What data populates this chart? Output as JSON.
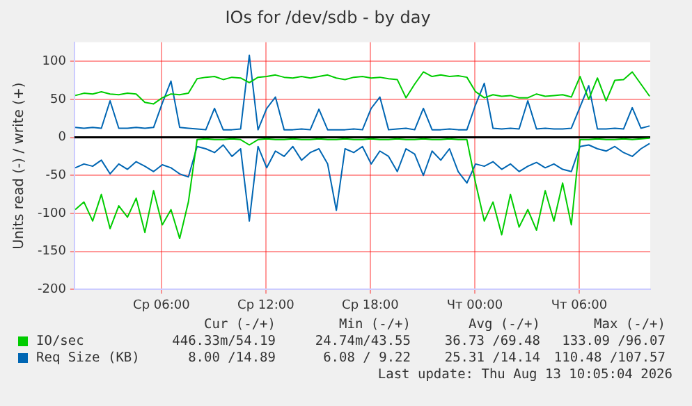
{
  "chart_data": {
    "type": "line",
    "title": "IOs for /dev/sdb - by day",
    "ylabel": "Units read (-) / write (+)",
    "x": [
      "2026-08-12T01:03",
      "2026-08-12T01:33",
      "2026-08-12T02:03",
      "2026-08-12T02:33",
      "2026-08-12T03:03",
      "2026-08-12T03:33",
      "2026-08-12T04:03",
      "2026-08-12T04:33",
      "2026-08-12T05:03",
      "2026-08-12T05:33",
      "2026-08-12T06:03",
      "2026-08-12T06:33",
      "2026-08-12T07:03",
      "2026-08-12T07:33",
      "2026-08-12T08:03",
      "2026-08-12T08:33",
      "2026-08-12T09:03",
      "2026-08-12T09:33",
      "2026-08-12T10:03",
      "2026-08-12T10:33",
      "2026-08-12T11:03",
      "2026-08-12T11:33",
      "2026-08-12T12:03",
      "2026-08-12T12:33",
      "2026-08-12T13:03",
      "2026-08-12T13:33",
      "2026-08-12T14:03",
      "2026-08-12T14:33",
      "2026-08-12T15:03",
      "2026-08-12T15:33",
      "2026-08-12T16:03",
      "2026-08-12T16:33",
      "2026-08-12T17:03",
      "2026-08-12T17:33",
      "2026-08-12T18:03",
      "2026-08-12T18:33",
      "2026-08-12T19:03",
      "2026-08-12T19:33",
      "2026-08-12T20:03",
      "2026-08-12T20:33",
      "2026-08-12T21:03",
      "2026-08-12T21:33",
      "2026-08-12T22:03",
      "2026-08-12T22:33",
      "2026-08-12T23:03",
      "2026-08-12T23:33",
      "2026-08-13T00:03",
      "2026-08-13T00:33",
      "2026-08-13T01:03",
      "2026-08-13T01:33",
      "2026-08-13T02:03",
      "2026-08-13T02:33",
      "2026-08-13T03:03",
      "2026-08-13T03:33",
      "2026-08-13T04:03",
      "2026-08-13T04:33",
      "2026-08-13T05:03",
      "2026-08-13T05:33",
      "2026-08-13T06:03",
      "2026-08-13T06:33",
      "2026-08-13T07:03",
      "2026-08-13T07:33",
      "2026-08-13T08:03",
      "2026-08-13T08:33",
      "2026-08-13T09:03",
      "2026-08-13T09:33",
      "2026-08-13T10:03"
    ],
    "series": [
      {
        "name": "IO/sec",
        "color": "#00cc00",
        "values": [
          55,
          58,
          57,
          60,
          57,
          56,
          58,
          57,
          46,
          44,
          52,
          57,
          56,
          58,
          77,
          79,
          80,
          76,
          79,
          78,
          72,
          79,
          80,
          82,
          79,
          78,
          80,
          78,
          80,
          82,
          78,
          76,
          79,
          80,
          78,
          79,
          77,
          76,
          52,
          70,
          86,
          80,
          82,
          80,
          81,
          79,
          60,
          52,
          56,
          54,
          55,
          52,
          52,
          57,
          54,
          55,
          56,
          53,
          80,
          50,
          78,
          48,
          75,
          76,
          86,
          70,
          54
        ]
      },
      {
        "color": "#00cc00",
        "values": [
          -95,
          -85,
          -110,
          -75,
          -120,
          -90,
          -105,
          -80,
          -125,
          -70,
          -115,
          -95,
          -133,
          -85,
          -3,
          -2,
          -3,
          -3,
          -2,
          -3,
          -10,
          -3,
          -2,
          -3,
          -3,
          -2,
          -3,
          -3,
          -2,
          -3,
          -3,
          -2,
          -3,
          -3,
          -2,
          -3,
          -3,
          -2,
          -3,
          -3,
          -2,
          -3,
          -3,
          -2,
          -3,
          -3,
          -60,
          -110,
          -85,
          -128,
          -75,
          -118,
          -95,
          -122,
          -70,
          -110,
          -60,
          -115,
          -3,
          -3,
          -2,
          -3,
          -3,
          -2,
          -3,
          -2,
          -1
        ]
      },
      {
        "name": "Req Size (KB)",
        "color": "#0066b3",
        "values": [
          13,
          12,
          13,
          12,
          48,
          12,
          12,
          13,
          12,
          13,
          45,
          74,
          13,
          12,
          11,
          10,
          38,
          10,
          10,
          11,
          108,
          10,
          38,
          53,
          10,
          10,
          11,
          10,
          37,
          10,
          10,
          10,
          11,
          10,
          38,
          53,
          10,
          11,
          12,
          10,
          38,
          10,
          10,
          11,
          10,
          10,
          43,
          71,
          12,
          11,
          12,
          11,
          48,
          11,
          12,
          11,
          11,
          12,
          40,
          68,
          11,
          11,
          12,
          11,
          39,
          12,
          15
        ]
      },
      {
        "color": "#0066b3",
        "values": [
          -40,
          -35,
          -38,
          -30,
          -48,
          -35,
          -42,
          -32,
          -38,
          -45,
          -36,
          -40,
          -48,
          -52,
          -12,
          -15,
          -20,
          -10,
          -25,
          -15,
          -110,
          -12,
          -40,
          -18,
          -25,
          -12,
          -30,
          -20,
          -15,
          -35,
          -96,
          -15,
          -20,
          -12,
          -35,
          -18,
          -25,
          -45,
          -15,
          -22,
          -50,
          -18,
          -30,
          -15,
          -45,
          -60,
          -35,
          -38,
          -32,
          -42,
          -35,
          -45,
          -38,
          -33,
          -40,
          -35,
          -42,
          -45,
          -12,
          -10,
          -15,
          -18,
          -12,
          -20,
          -25,
          -15,
          -8
        ]
      }
    ],
    "xlim": [
      "2026-08-12T01:00",
      "2026-08-13T10:05"
    ],
    "xticks": [
      {
        "value": "2026-08-12T06:00",
        "label": "Ср 06:00"
      },
      {
        "value": "2026-08-12T12:00",
        "label": "Ср 12:00"
      },
      {
        "value": "2026-08-12T18:00",
        "label": "Ср 18:00"
      },
      {
        "value": "2026-08-13T00:00",
        "label": "Чт 00:00"
      },
      {
        "value": "2026-08-13T06:00",
        "label": "Чт 06:00"
      }
    ],
    "ylim": [
      -200,
      125
    ],
    "yticks": [
      -200,
      -150,
      -100,
      -50,
      0,
      50,
      100
    ],
    "grid": true,
    "legend": "bottom left",
    "marker": "none",
    "line_style": "solid",
    "ref_lines": [
      {
        "axis": "y",
        "value": 0,
        "color": "#000000"
      }
    ],
    "annotations": [
      "Cur (-/+)",
      "Min (-/+)",
      "Avg (-/+)",
      "Max (-/+)",
      "446.33m/54.19",
      "24.74m/43.55",
      "36.73 /69.48",
      "133.09 /96.07",
      "8.00 /14.89",
      "6.08 / 9.22",
      "25.31 /14.14",
      "110.48 /107.57",
      "Last update: Thu Aug 13 10:05:04 2026"
    ]
  }
}
